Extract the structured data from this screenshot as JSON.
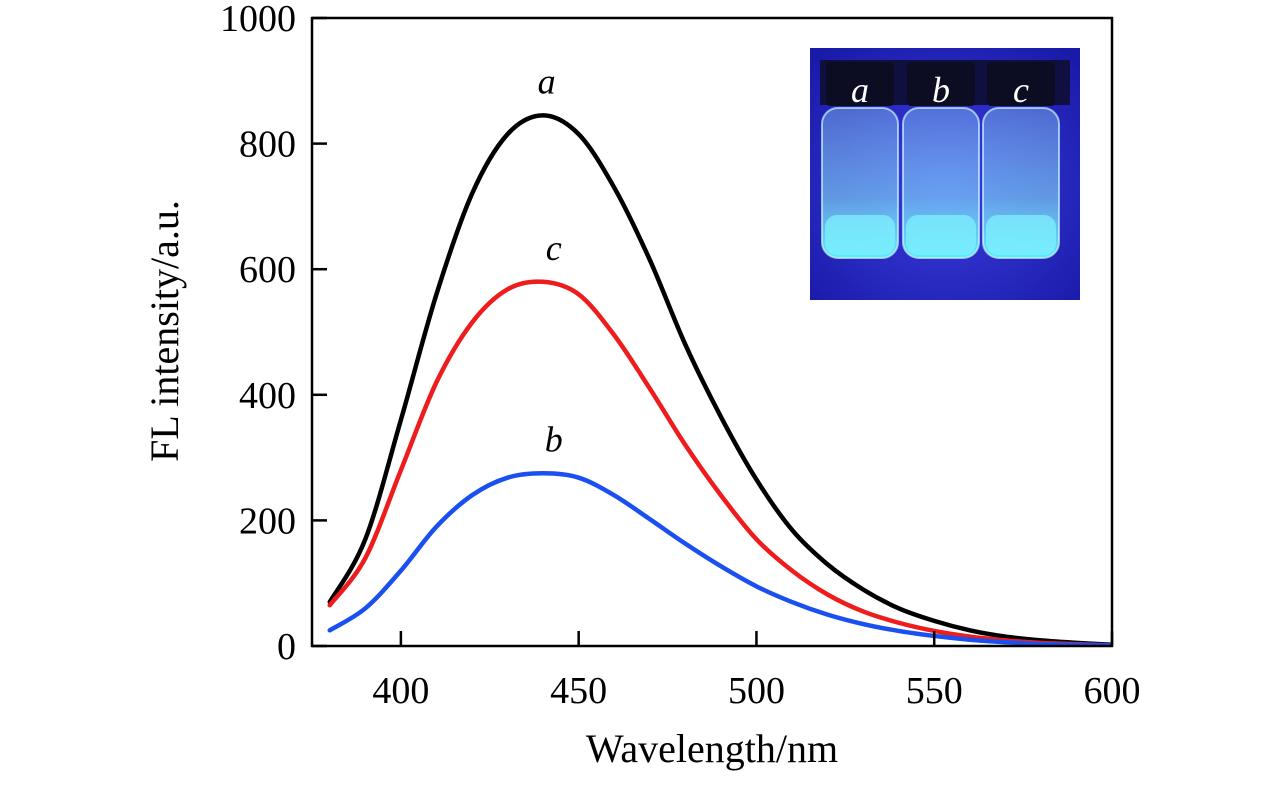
{
  "chart_data": {
    "type": "line",
    "xlabel": "Wavelength/nm",
    "ylabel": "FL intensity/a.u.",
    "xlim": [
      375,
      600
    ],
    "ylim": [
      0,
      1000
    ],
    "x_ticks": [
      400,
      450,
      500,
      550,
      600
    ],
    "y_ticks": [
      0,
      200,
      400,
      600,
      800,
      1000
    ],
    "grid": false,
    "x": [
      380,
      390,
      400,
      410,
      420,
      430,
      440,
      450,
      460,
      470,
      480,
      490,
      500,
      510,
      520,
      530,
      540,
      550,
      560,
      570,
      580,
      590,
      600
    ],
    "series": [
      {
        "name": "a",
        "color": "#000000",
        "values": [
          70,
          170,
          360,
          560,
          720,
          815,
          845,
          815,
          730,
          615,
          480,
          365,
          265,
          185,
          130,
          90,
          60,
          40,
          25,
          15,
          9,
          5,
          2
        ]
      },
      {
        "name": "c",
        "color": "#ee1c1c",
        "values": [
          65,
          140,
          280,
          420,
          515,
          568,
          580,
          560,
          495,
          410,
          320,
          240,
          170,
          120,
          82,
          55,
          37,
          24,
          15,
          9,
          5,
          3,
          1
        ]
      },
      {
        "name": "b",
        "color": "#1a4ff0",
        "values": [
          25,
          60,
          120,
          190,
          240,
          268,
          275,
          268,
          240,
          202,
          163,
          127,
          95,
          70,
          50,
          35,
          24,
          16,
          10,
          6,
          3,
          2,
          1
        ]
      }
    ],
    "annotations": [
      {
        "text": "a",
        "x": 441,
        "y": 880
      },
      {
        "text": "c",
        "x": 443,
        "y": 615
      },
      {
        "text": "b",
        "x": 443,
        "y": 310
      }
    ],
    "inset": {
      "labels": [
        "a",
        "b",
        "c"
      ],
      "background_color": "#2a2fd0",
      "glow_color": "#7ff0ff"
    }
  }
}
